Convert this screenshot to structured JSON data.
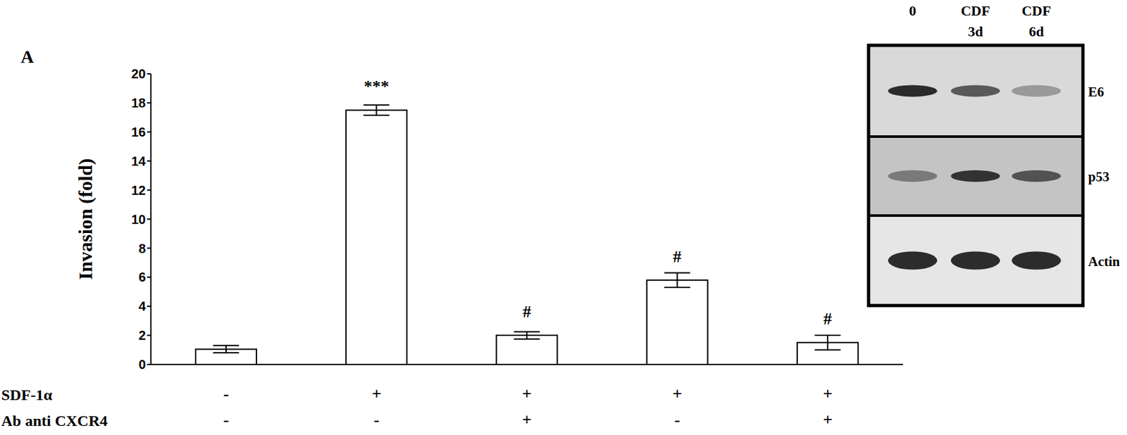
{
  "chart_data": {
    "type": "bar",
    "panel_label": "A",
    "y_label": "Invasion (fold)",
    "values": [
      1.05,
      17.5,
      2.0,
      5.8,
      1.5
    ],
    "errors": [
      0.25,
      0.35,
      0.25,
      0.5,
      0.5
    ],
    "significance": [
      null,
      "***",
      "#",
      "#",
      "#"
    ],
    "treatments": [
      {
        "label": "SDF-1α",
        "signs": [
          "-",
          "+",
          "+",
          "+",
          "+"
        ]
      },
      {
        "label": "Ab anti CXCR4",
        "signs": [
          "-",
          "-",
          "+",
          "-",
          "+"
        ]
      }
    ],
    "color": "#ffffff",
    "ylim": [
      0,
      20
    ],
    "yticks": [
      0,
      2,
      4,
      6,
      8,
      10,
      12,
      14,
      16,
      18,
      20
    ],
    "grid": false
  },
  "blot": {
    "lanes": [
      [
        "0"
      ],
      [
        "CDF",
        "3d"
      ],
      [
        "CDF",
        "6d"
      ]
    ],
    "rows": [
      "E6",
      "p53",
      "Actin"
    ]
  }
}
